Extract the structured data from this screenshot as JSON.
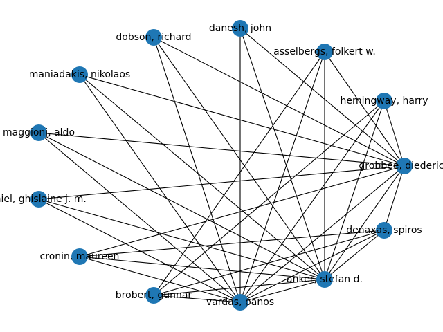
{
  "graph": {
    "node_color": "#1f77b4",
    "edge_color": "#000000",
    "nodes": [
      {
        "id": "danesh",
        "label": "danesh, john"
      },
      {
        "id": "dobson",
        "label": "dobson, richard"
      },
      {
        "id": "asselbergs",
        "label": "asselbergs, folkert w."
      },
      {
        "id": "maniadakis",
        "label": "maniadakis, nikolaos"
      },
      {
        "id": "hemingway",
        "label": "hemingway, harry"
      },
      {
        "id": "maggioni",
        "label": "maggioni, aldo"
      },
      {
        "id": "grobbee",
        "label": "grobbee, diederick"
      },
      {
        "id": "thiel",
        "label": "thiel, ghislaine j. m."
      },
      {
        "id": "denaxas",
        "label": "denaxas, spiros"
      },
      {
        "id": "cronin",
        "label": "cronin, maureen"
      },
      {
        "id": "anker",
        "label": "anker, stefan d."
      },
      {
        "id": "brobert",
        "label": "brobert, gunnar"
      },
      {
        "id": "vardas",
        "label": "vardas, panos"
      }
    ],
    "edges": [
      [
        "danesh",
        "vardas"
      ],
      [
        "danesh",
        "anker"
      ],
      [
        "danesh",
        "grobbee"
      ],
      [
        "dobson",
        "vardas"
      ],
      [
        "dobson",
        "anker"
      ],
      [
        "dobson",
        "grobbee"
      ],
      [
        "asselbergs",
        "vardas"
      ],
      [
        "asselbergs",
        "anker"
      ],
      [
        "asselbergs",
        "grobbee"
      ],
      [
        "asselbergs",
        "brobert"
      ],
      [
        "maniadakis",
        "vardas"
      ],
      [
        "maniadakis",
        "anker"
      ],
      [
        "maniadakis",
        "grobbee"
      ],
      [
        "hemingway",
        "vardas"
      ],
      [
        "hemingway",
        "anker"
      ],
      [
        "hemingway",
        "grobbee"
      ],
      [
        "hemingway",
        "brobert"
      ],
      [
        "maggioni",
        "vardas"
      ],
      [
        "maggioni",
        "anker"
      ],
      [
        "maggioni",
        "grobbee"
      ],
      [
        "thiel",
        "vardas"
      ],
      [
        "thiel",
        "anker"
      ],
      [
        "thiel",
        "grobbee"
      ],
      [
        "grobbee",
        "denaxas"
      ],
      [
        "grobbee",
        "anker"
      ],
      [
        "grobbee",
        "vardas"
      ],
      [
        "grobbee",
        "cronin"
      ],
      [
        "denaxas",
        "vardas"
      ],
      [
        "denaxas",
        "anker"
      ],
      [
        "denaxas",
        "cronin"
      ],
      [
        "denaxas",
        "brobert"
      ],
      [
        "cronin",
        "vardas"
      ],
      [
        "cronin",
        "anker"
      ],
      [
        "anker",
        "vardas"
      ],
      [
        "anker",
        "brobert"
      ],
      [
        "brobert",
        "vardas"
      ]
    ]
  }
}
